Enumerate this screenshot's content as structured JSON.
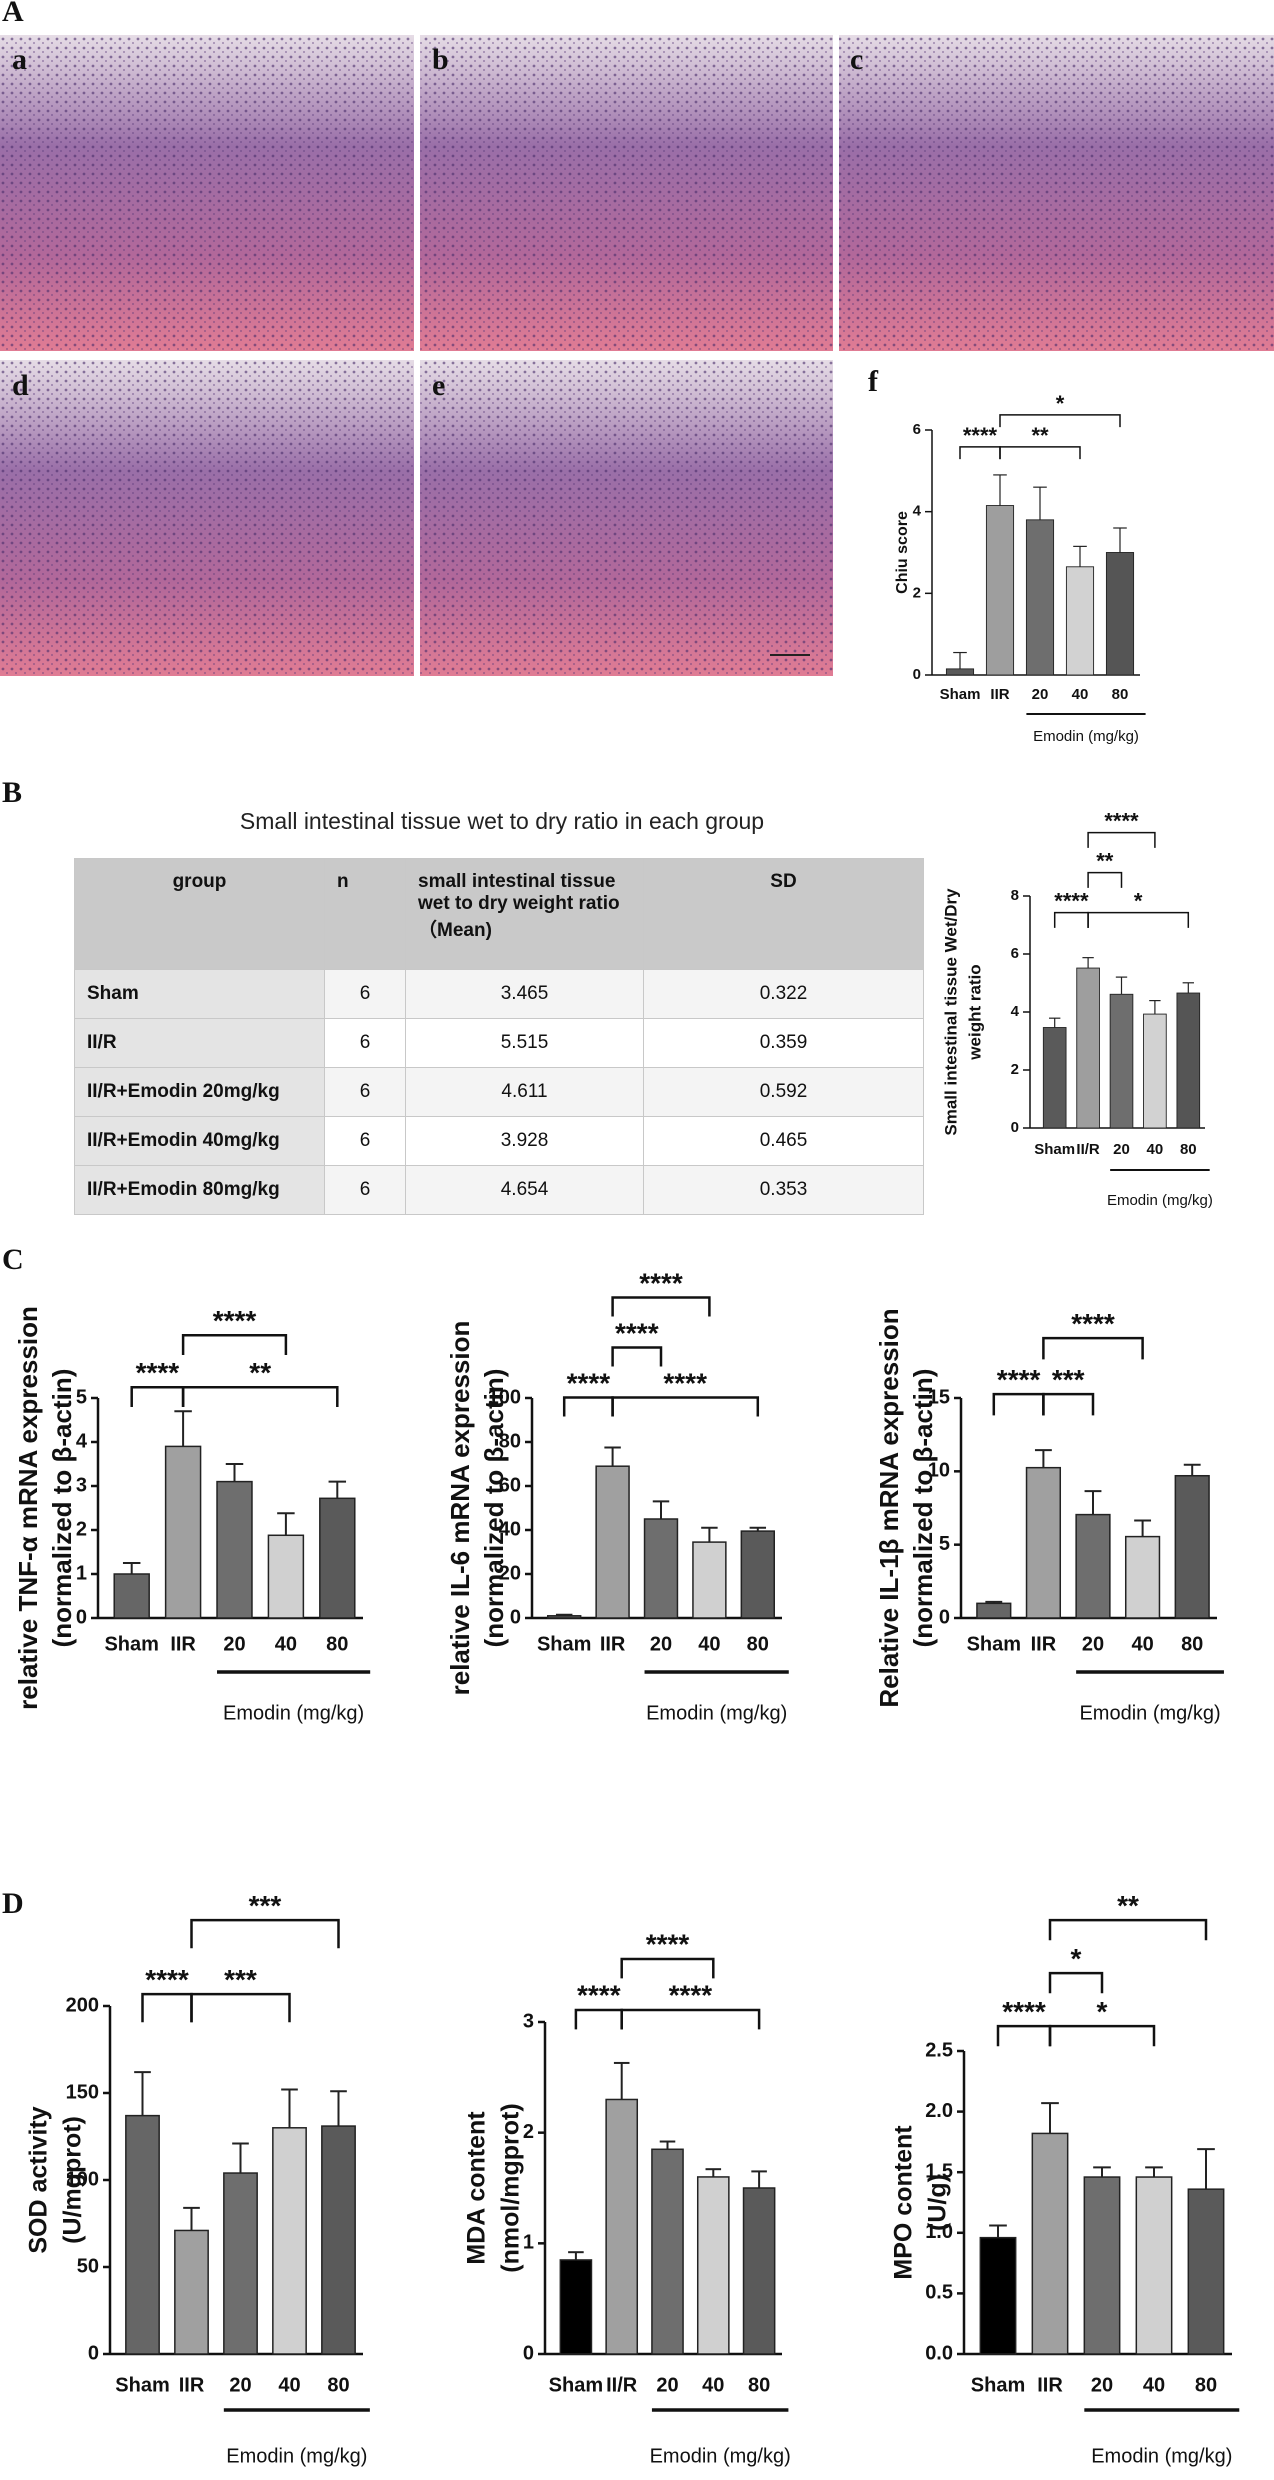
{
  "panels": [
    "A",
    "B",
    "C",
    "D"
  ],
  "images": [
    "a",
    "b",
    "c",
    "d",
    "e"
  ],
  "table": {
    "title": "Small intestinal tissue wet to dry ratio in each group",
    "header": [
      "group",
      "n",
      "small intestinal tissue wet to dry weight ratio（Mean)",
      "SD"
    ],
    "rows": [
      [
        "Sham",
        "6",
        "3.465",
        "0.322"
      ],
      [
        "II/R",
        "6",
        "5.515",
        "0.359"
      ],
      [
        "II/R+Emodin 20mg/kg",
        "6",
        "4.611",
        "0.592"
      ],
      [
        "II/R+Emodin 40mg/kg",
        "6",
        "3.928",
        "0.465"
      ],
      [
        "II/R+Emodin 80mg/kg",
        "6",
        "4.654",
        "0.353"
      ]
    ]
  },
  "chart_data": [
    {
      "type": "bar",
      "panel": "f",
      "ylabel": [
        "Chiu score"
      ],
      "xlabel": "Emodin (mg/kg)",
      "categories": [
        "Sham",
        "IIR",
        "20",
        "40",
        "80"
      ],
      "values": [
        0.15,
        4.15,
        3.8,
        2.65,
        3.0
      ],
      "errors": [
        0.4,
        0.75,
        0.8,
        0.5,
        0.6
      ],
      "colors": [
        "#5a5a5a",
        "#9e9e9e",
        "#6e6e6e",
        "#d2d2d2",
        "#555555"
      ],
      "ylim": [
        0,
        6
      ],
      "yticks": [
        0,
        2,
        4,
        6
      ],
      "annotations": [
        {
          "text": "****",
          "from": "Sham",
          "to": "IIR"
        },
        {
          "text": "**",
          "from": "IIR",
          "to": "40"
        },
        {
          "text": "*",
          "from": "IIR",
          "to": "80"
        }
      ]
    },
    {
      "type": "bar",
      "ylabel": [
        "Small intestinal tissue Wet/Dry",
        "weight ratio"
      ],
      "xlabel": "Emodin (mg/kg)",
      "categories": [
        "Sham",
        "II/R",
        "20",
        "40",
        "80"
      ],
      "values": [
        3.465,
        5.515,
        4.611,
        3.928,
        4.654
      ],
      "errors": [
        0.322,
        0.359,
        0.592,
        0.465,
        0.353
      ],
      "colors": [
        "#5a5a5a",
        "#9e9e9e",
        "#6e6e6e",
        "#d2d2d2",
        "#555555"
      ],
      "ylim": [
        0,
        8
      ],
      "yticks": [
        0,
        2,
        4,
        6,
        8
      ],
      "annotations": [
        {
          "text": "****",
          "from": "Sham",
          "to": "II/R"
        },
        {
          "text": "*",
          "from": "II/R",
          "to": "80"
        },
        {
          "text": "**",
          "from": "II/R",
          "to": "20"
        },
        {
          "text": "****",
          "from": "II/R",
          "to": "40"
        }
      ]
    },
    {
      "type": "bar",
      "ylabel": [
        "relative TNF-α mRNA expression",
        "(normalized to β-actin)"
      ],
      "xlabel": "Emodin (mg/kg)",
      "categories": [
        "Sham",
        "IIR",
        "20",
        "40",
        "80"
      ],
      "values": [
        1.0,
        3.9,
        3.1,
        1.88,
        2.72
      ],
      "errors": [
        0.25,
        0.8,
        0.4,
        0.5,
        0.38
      ],
      "colors": [
        "#666666",
        "#a0a0a0",
        "#6e6e6e",
        "#d0d0d0",
        "#5a5a5a"
      ],
      "ylim": [
        0,
        5
      ],
      "yticks": [
        0,
        1,
        2,
        3,
        4,
        5
      ],
      "annotations": [
        {
          "text": "****",
          "from": "Sham",
          "to": "IIR"
        },
        {
          "text": "**",
          "from": "IIR",
          "to": "80"
        },
        {
          "text": "****",
          "from": "IIR",
          "to": "40"
        }
      ]
    },
    {
      "type": "bar",
      "ylabel": [
        "relative IL-6 mRNA expression",
        "(normalized to β-actin)"
      ],
      "xlabel": "Emodin (mg/kg)",
      "categories": [
        "Sham",
        "IIR",
        "20",
        "40",
        "80"
      ],
      "values": [
        1,
        69,
        45,
        34.5,
        39.5
      ],
      "errors": [
        0.5,
        8.5,
        8,
        6.5,
        1.5
      ],
      "colors": [
        "#666666",
        "#a0a0a0",
        "#6e6e6e",
        "#d0d0d0",
        "#5a5a5a"
      ],
      "ylim": [
        0,
        100
      ],
      "yticks": [
        0,
        20,
        40,
        60,
        80,
        100
      ],
      "annotations": [
        {
          "text": "****",
          "from": "Sham",
          "to": "IIR"
        },
        {
          "text": "****",
          "from": "IIR",
          "to": "80"
        },
        {
          "text": "****",
          "from": "IIR",
          "to": "20"
        },
        {
          "text": "****",
          "from": "IIR",
          "to": "40"
        }
      ]
    },
    {
      "type": "bar",
      "ylabel": [
        "Relative IL-1β mRNA expression",
        "(normalized to β-actin)"
      ],
      "xlabel": "Emodin (mg/kg)",
      "categories": [
        "Sham",
        "IIR",
        "20",
        "40",
        "80"
      ],
      "values": [
        1.0,
        10.25,
        7.05,
        5.55,
        9.7
      ],
      "errors": [
        0.1,
        1.2,
        1.6,
        1.1,
        0.75
      ],
      "colors": [
        "#666666",
        "#a0a0a0",
        "#6e6e6e",
        "#d0d0d0",
        "#5a5a5a"
      ],
      "ylim": [
        0,
        15
      ],
      "yticks": [
        0,
        5,
        10,
        15
      ],
      "annotations": [
        {
          "text": "****",
          "from": "Sham",
          "to": "IIR"
        },
        {
          "text": "***",
          "from": "IIR",
          "to": "20"
        },
        {
          "text": "****",
          "from": "IIR",
          "to": "40"
        }
      ]
    },
    {
      "type": "bar",
      "ylabel": [
        "SOD activity",
        "(U/mgprot)"
      ],
      "xlabel": "Emodin (mg/kg)",
      "categories": [
        "Sham",
        "IIR",
        "20",
        "40",
        "80"
      ],
      "values": [
        137,
        71,
        104,
        130,
        131
      ],
      "errors": [
        25,
        13,
        17,
        22,
        20
      ],
      "colors": [
        "#666666",
        "#a0a0a0",
        "#6e6e6e",
        "#d0d0d0",
        "#5a5a5a"
      ],
      "ylim": [
        0,
        200
      ],
      "yticks": [
        0,
        50,
        100,
        150,
        200
      ],
      "annotations": [
        {
          "text": "****",
          "from": "Sham",
          "to": "IIR"
        },
        {
          "text": "***",
          "from": "IIR",
          "to": "40"
        },
        {
          "text": "***",
          "from": "IIR",
          "to": "80"
        }
      ]
    },
    {
      "type": "bar",
      "ylabel": [
        "MDA content",
        "(nmol/mgprot)"
      ],
      "xlabel": "Emodin (mg/kg)",
      "categories": [
        "Sham",
        "II/R",
        "20",
        "40",
        "80"
      ],
      "values": [
        0.85,
        2.3,
        1.85,
        1.6,
        1.5
      ],
      "errors": [
        0.07,
        0.33,
        0.07,
        0.07,
        0.15
      ],
      "colors": [
        "#000000",
        "#a0a0a0",
        "#6e6e6e",
        "#d0d0d0",
        "#5a5a5a"
      ],
      "ylim": [
        0,
        3
      ],
      "yticks": [
        0,
        1,
        2,
        3
      ],
      "annotations": [
        {
          "text": "****",
          "from": "Sham",
          "to": "II/R"
        },
        {
          "text": "****",
          "from": "II/R",
          "to": "80"
        },
        {
          "text": "****",
          "from": "II/R",
          "to": "40"
        }
      ]
    },
    {
      "type": "bar",
      "ylabel": [
        "MPO content",
        "(U/g)"
      ],
      "xlabel": "Emodin (mg/kg)",
      "categories": [
        "Sham",
        "IIR",
        "20",
        "40",
        "80"
      ],
      "values": [
        0.96,
        1.82,
        1.46,
        1.46,
        1.36
      ],
      "errors": [
        0.1,
        0.25,
        0.08,
        0.08,
        0.33
      ],
      "colors": [
        "#000000",
        "#a0a0a0",
        "#6e6e6e",
        "#d0d0d0",
        "#5a5a5a"
      ],
      "ylim": [
        0,
        2.5
      ],
      "yticks": [
        {
          "value": 0,
          "label": "0.0"
        },
        0.5,
        {
          "value": 1,
          "label": "1.0"
        },
        1.5,
        {
          "value": 2,
          "label": "2.0"
        },
        2.5
      ],
      "annotations": [
        {
          "text": "****",
          "from": "Sham",
          "to": "IIR"
        },
        {
          "text": "*",
          "from": "IIR",
          "to": "40"
        },
        {
          "text": "*",
          "from": "IIR",
          "to": "20"
        },
        {
          "text": "**",
          "from": "IIR",
          "to": "80"
        }
      ]
    }
  ]
}
